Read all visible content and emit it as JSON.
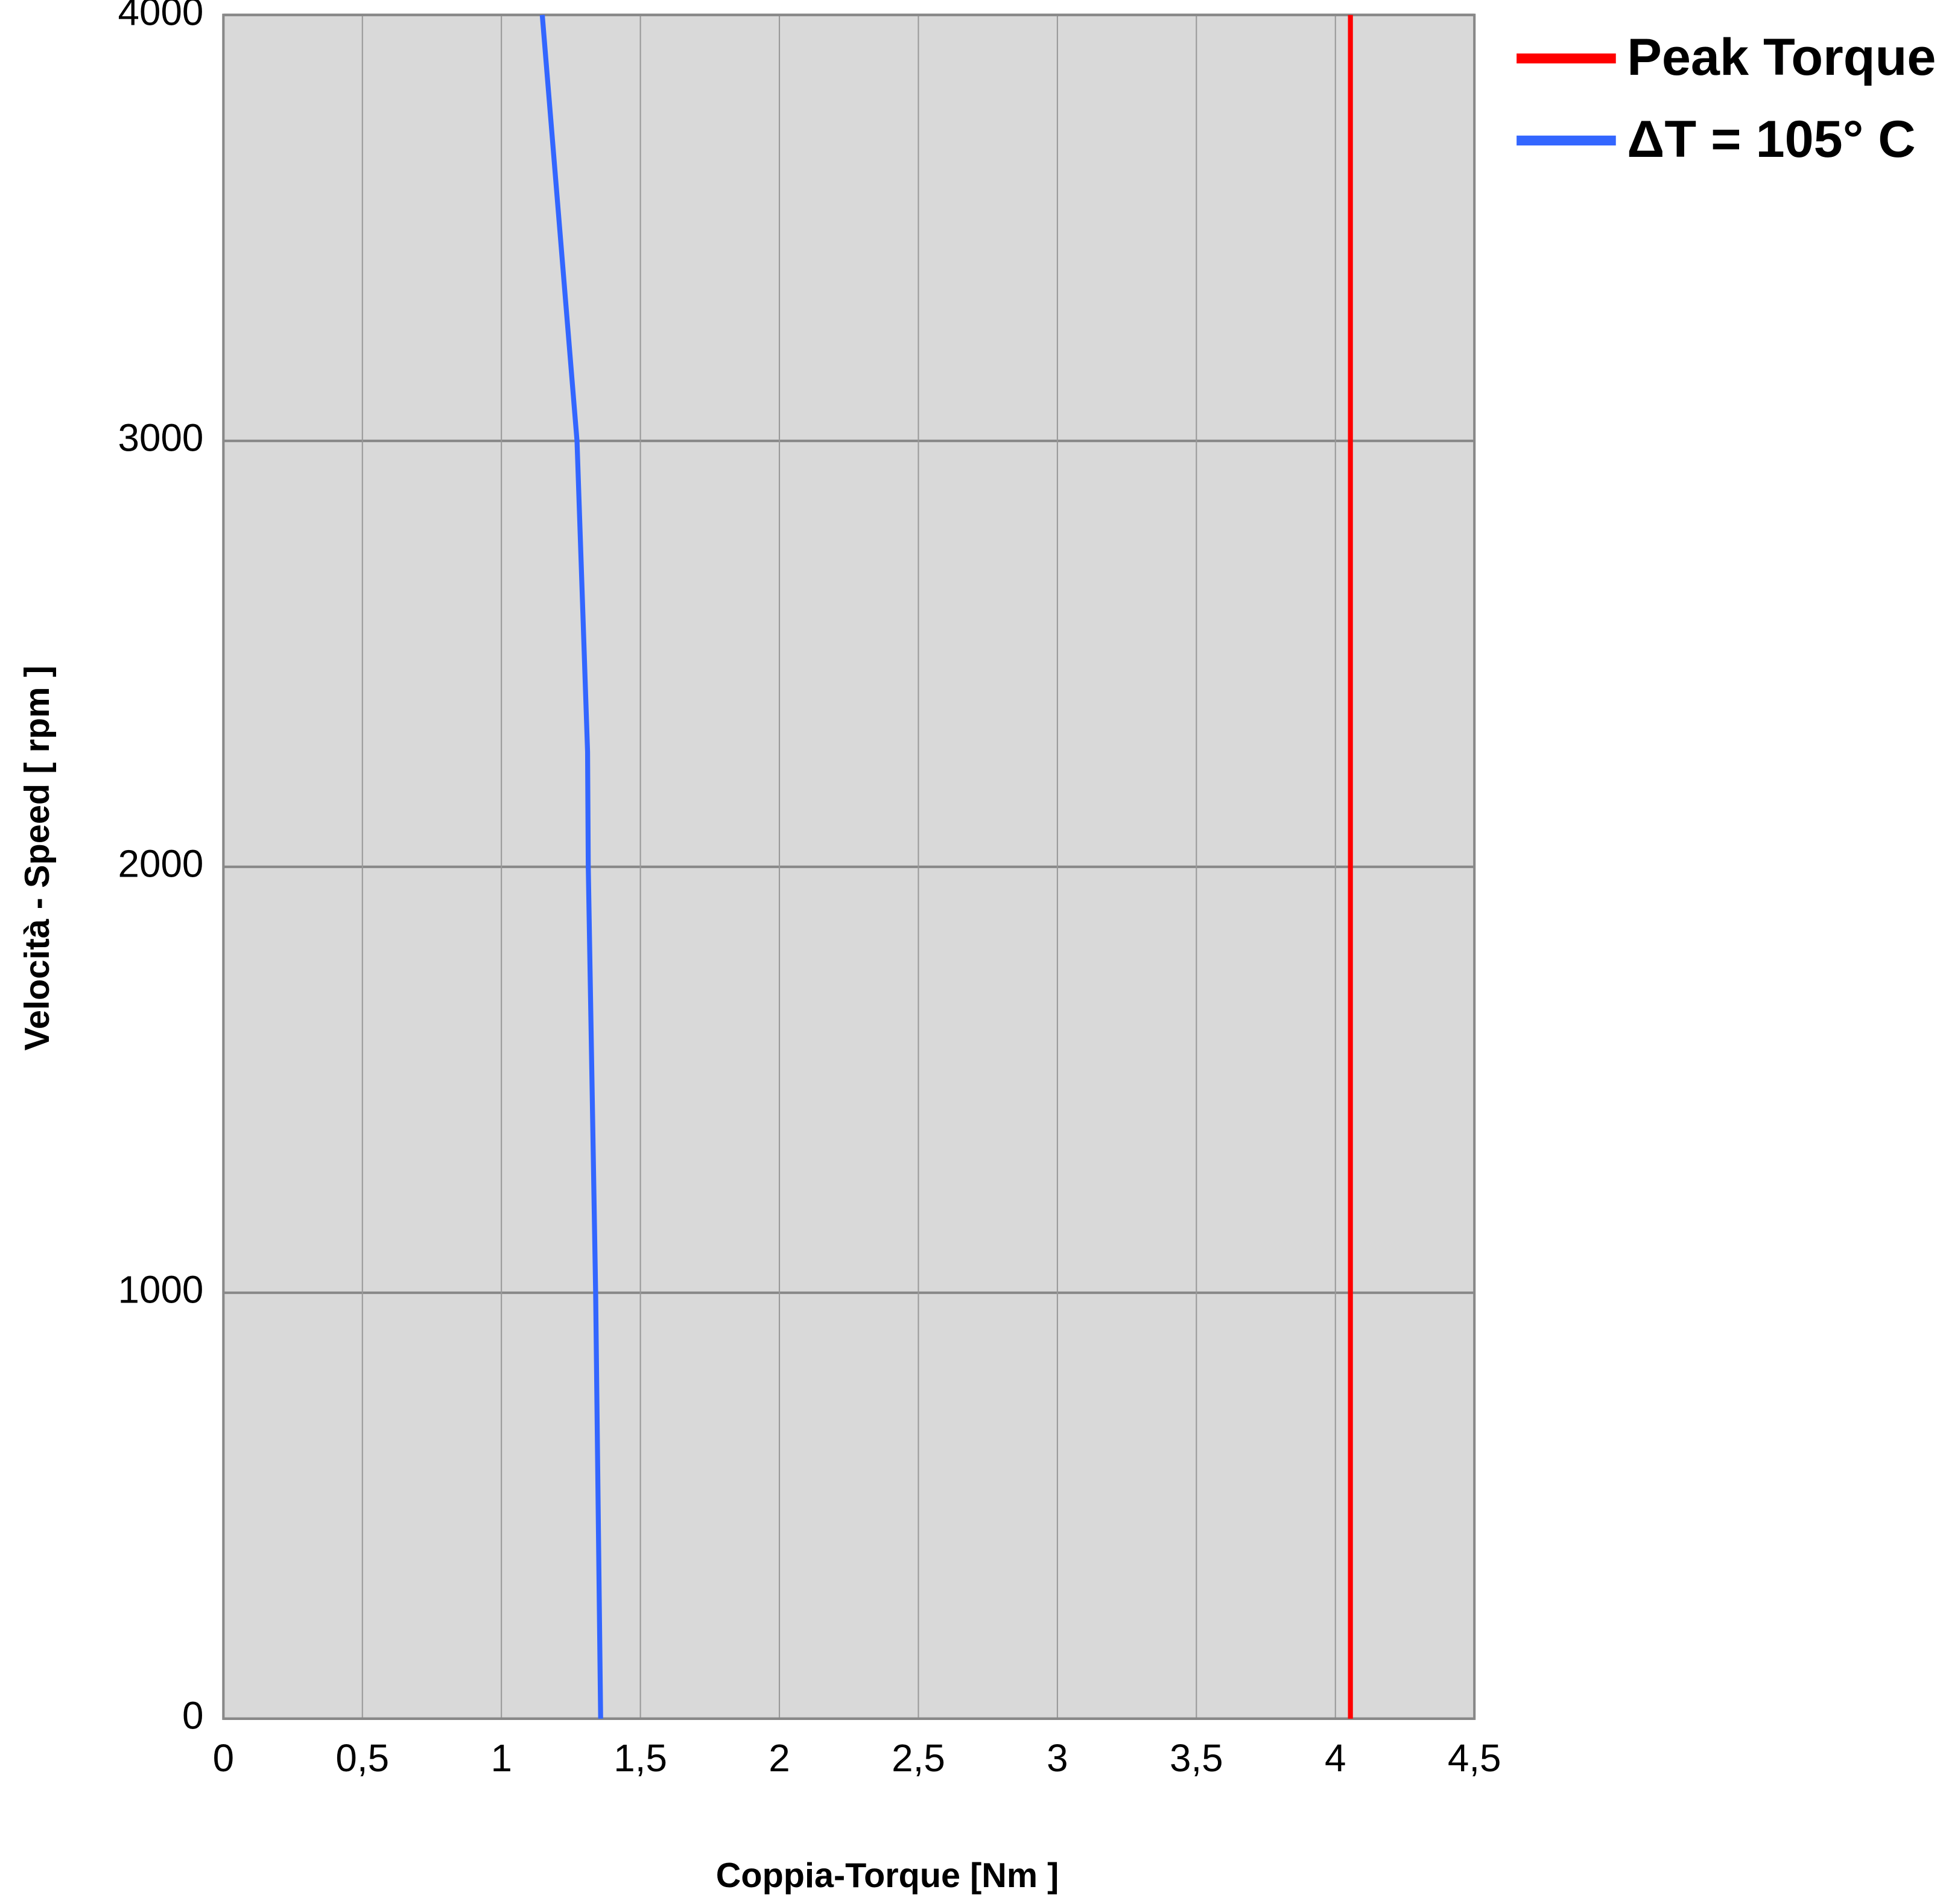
{
  "chart_data": {
    "type": "line",
    "x_label": "Coppia-Torque [Nm ]",
    "y_label": "Velocità - Speed [ rpm ]",
    "series": [
      {
        "name": "Peak Torque",
        "color": "#ff0000",
        "x": [
          4.054,
          4.054
        ],
        "values": [
          0,
          4000
        ]
      },
      {
        "name": "ΔT = 105° C",
        "color": "#3366ff",
        "x": [
          1.357,
          1.339,
          1.3125,
          1.31,
          1.272,
          1.147
        ],
        "values": [
          0,
          1000,
          2000,
          2270,
          3000,
          4000
        ]
      }
    ],
    "xlim": [
      0,
      4.5
    ],
    "xticks": [
      0,
      {
        "value": 0.5,
        "label": "0,5"
      },
      1,
      {
        "value": 1.5,
        "label": "1,5"
      },
      2,
      {
        "value": 2.5,
        "label": "2,5"
      },
      3,
      {
        "value": 3.5,
        "label": "3,5"
      },
      4,
      {
        "value": 4.5,
        "label": "4,5"
      }
    ],
    "ylim": [
      0,
      4000
    ],
    "yticks": [
      0,
      1000,
      2000,
      3000,
      4000
    ],
    "grid": true
  }
}
